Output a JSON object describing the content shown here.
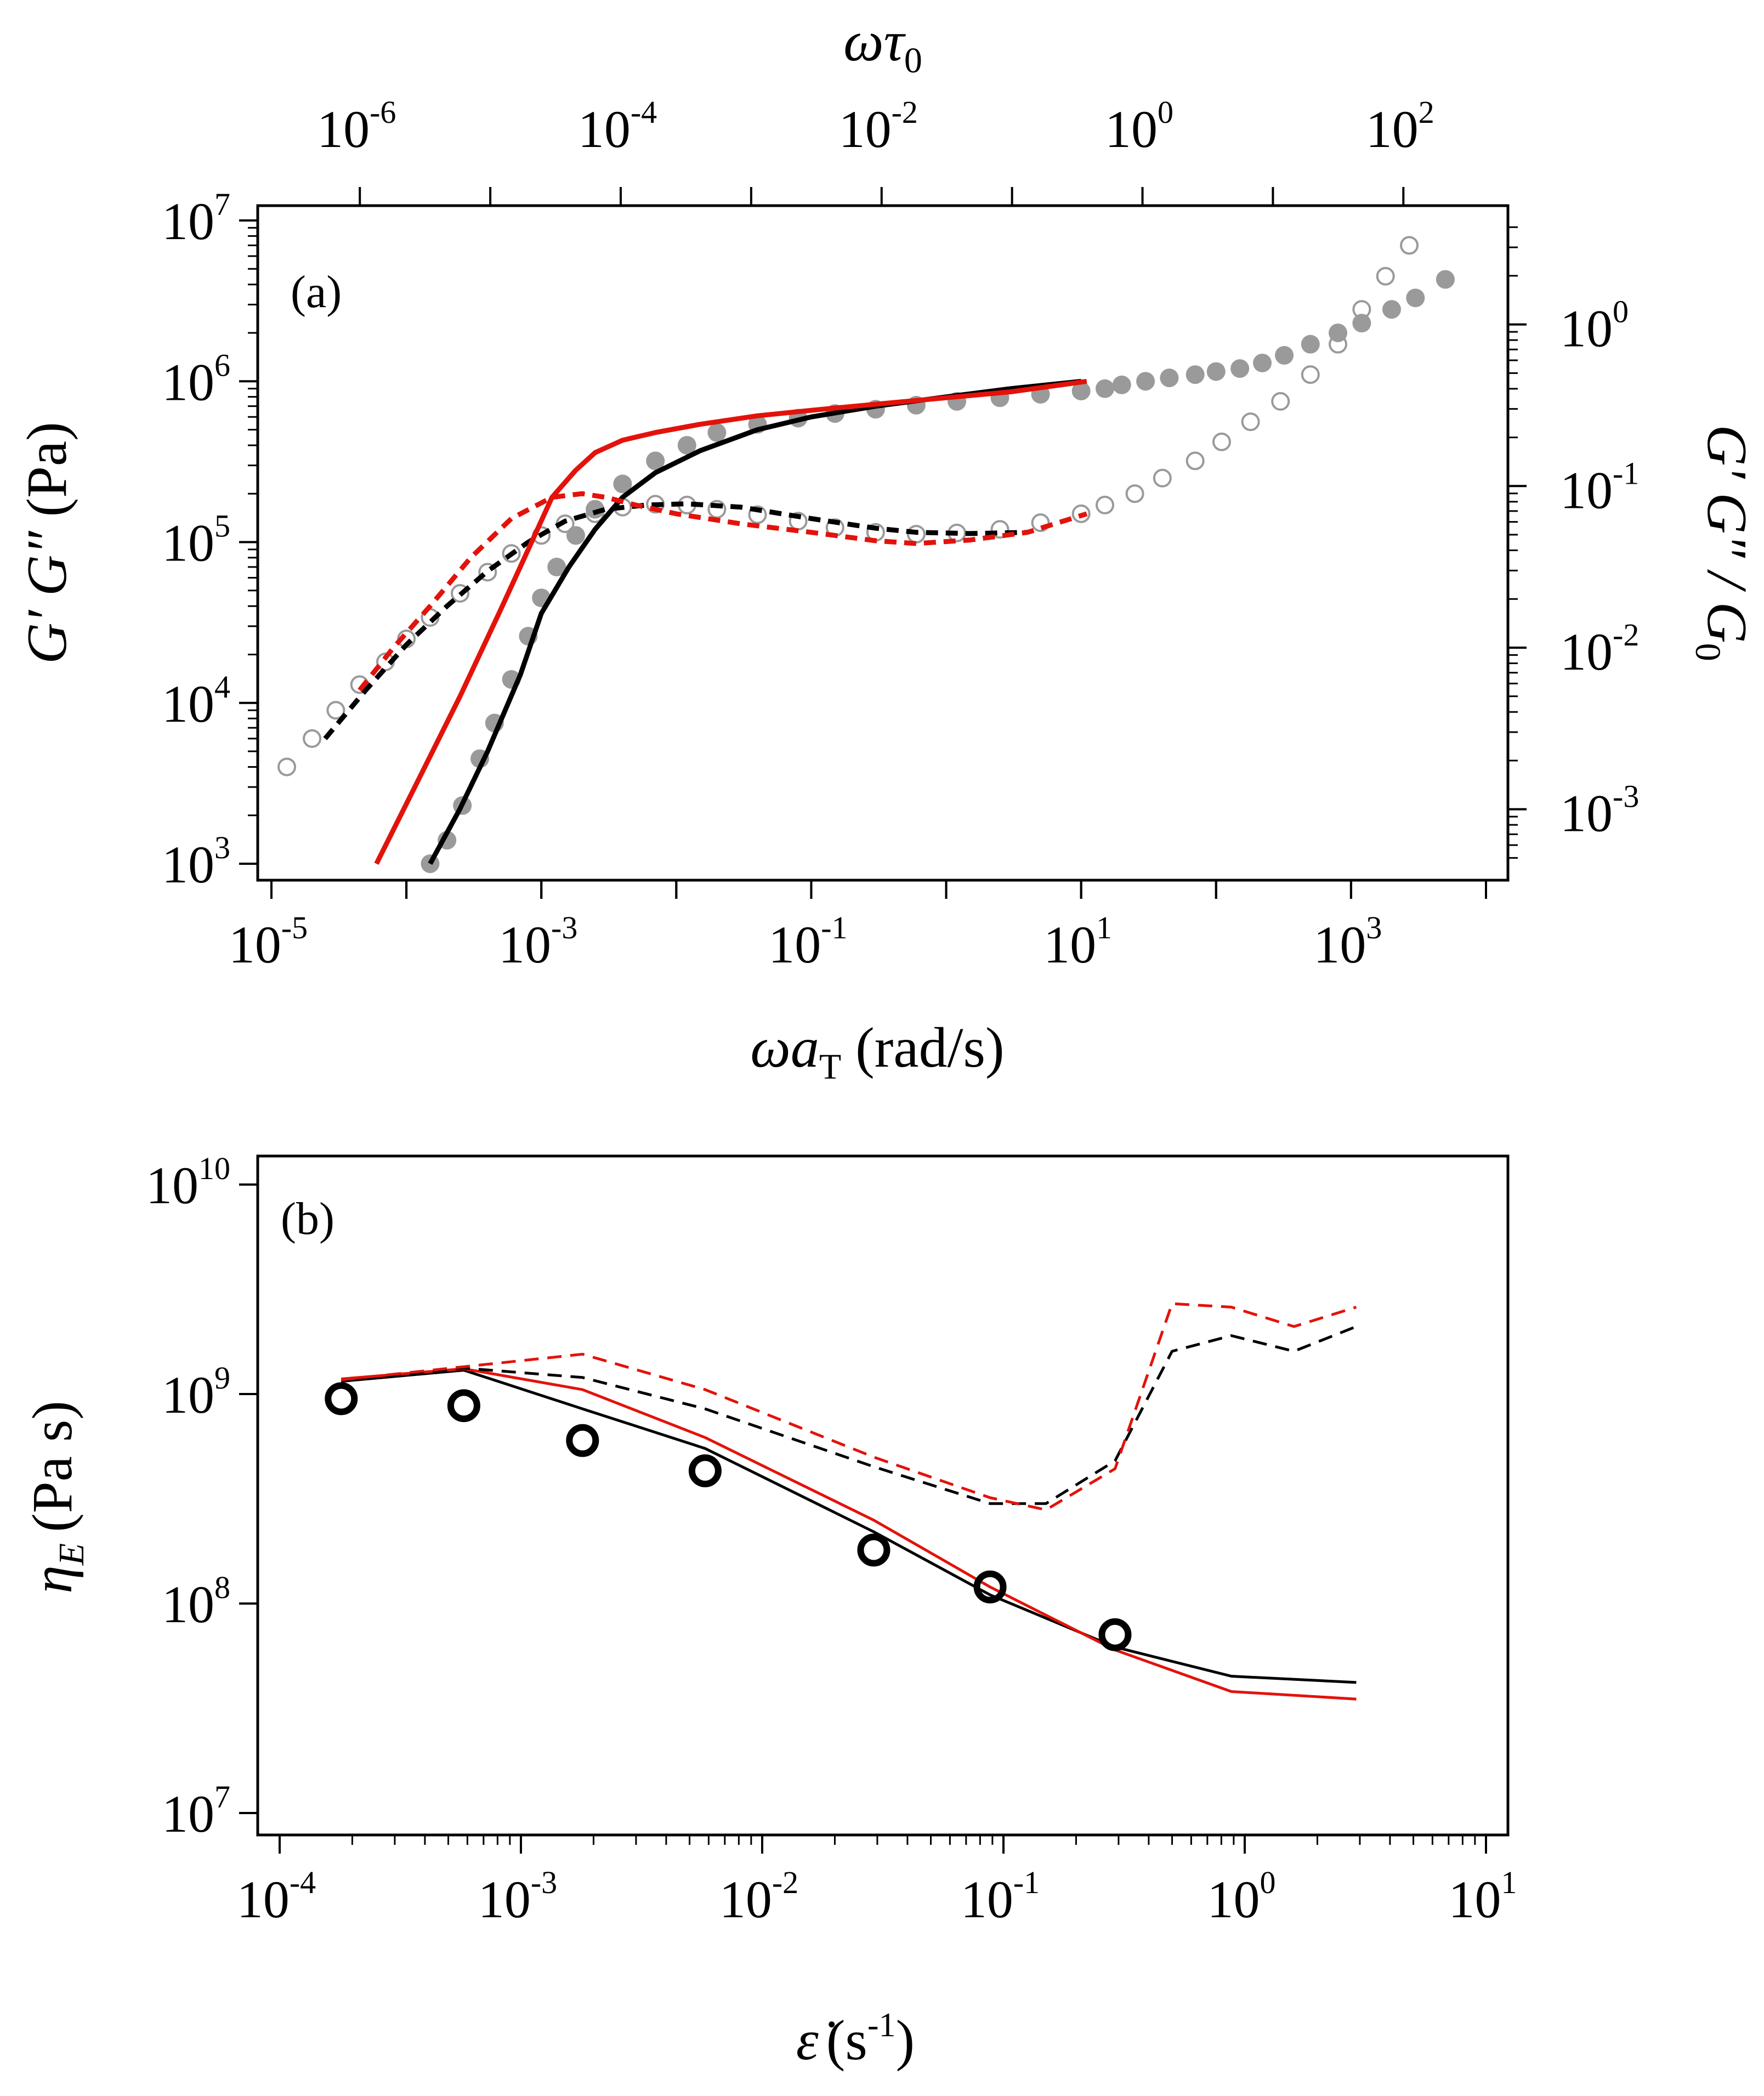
{
  "chart_data": [
    {
      "type": "scatter",
      "panel_label": "(a)",
      "xlabel": "ωa_T (rad/s)",
      "ylabel": "G′ G″ (Pa)",
      "top_xlabel": "ωτ0",
      "right_ylabel": "G′ G″ / G0",
      "x_scale": "log",
      "y_scale": "log",
      "xlim": [
        1e-05,
        10000.0
      ],
      "ylim": [
        1000.0,
        10000000.0
      ],
      "top_xlim": [
        2.1e-07,
        430.0
      ],
      "right_ylim": [
        0.00046,
        4.4
      ],
      "x_ticks": [
        "10^-5",
        "10^-3",
        "10^-1",
        "10^1",
        "10^3"
      ],
      "y_ticks": [
        "10^3",
        "10^4",
        "10^5",
        "10^6",
        "10^7"
      ],
      "top_ticks": [
        "10^-6",
        "10^-4",
        "10^-2",
        "10^0",
        "10^2"
      ],
      "right_ticks": [
        "10^-3",
        "10^-2",
        "10^-1",
        "10^0"
      ],
      "tick_labels": {
        "bottom": [
          {
            "base": "10",
            "exp": "-5"
          },
          {
            "base": "10",
            "exp": "-3"
          },
          {
            "base": "10",
            "exp": "-1"
          },
          {
            "base": "10",
            "exp": "1"
          },
          {
            "base": "10",
            "exp": "3"
          }
        ],
        "left": [
          {
            "base": "10",
            "exp": "3"
          },
          {
            "base": "10",
            "exp": "4"
          },
          {
            "base": "10",
            "exp": "5"
          },
          {
            "base": "10",
            "exp": "6"
          },
          {
            "base": "10",
            "exp": "7"
          }
        ],
        "top": [
          {
            "base": "10",
            "exp": "-6"
          },
          {
            "base": "10",
            "exp": "-4"
          },
          {
            "base": "10",
            "exp": "-2"
          },
          {
            "base": "10",
            "exp": "0"
          },
          {
            "base": "10",
            "exp": "2"
          }
        ],
        "right": [
          {
            "base": "10",
            "exp": "-3"
          },
          {
            "base": "10",
            "exp": "-2"
          },
          {
            "base": "10",
            "exp": "-1"
          },
          {
            "base": "10",
            "exp": "0"
          }
        ]
      },
      "series": [
        {
          "name": "G′ data",
          "marker": "filled-circle",
          "color": "#9a9a9a",
          "x": [
            0.00015,
            0.0002,
            0.00026,
            0.00035,
            0.00045,
            0.0006,
            0.0008,
            0.001,
            0.0013,
            0.0018,
            0.0025,
            0.004,
            0.007,
            0.012,
            0.02,
            0.04,
            0.08,
            0.15,
            0.3,
            0.6,
            1.2,
            2.5,
            5,
            10,
            15,
            20,
            30,
            45,
            70,
            100,
            150,
            220,
            320,
            500,
            800,
            1200,
            2000,
            3000,
            5000
          ],
          "y": [
            1000,
            1400,
            2300,
            4500,
            7500,
            14000,
            26000,
            45000,
            70000,
            110000,
            160000,
            230000,
            320000,
            400000,
            480000,
            540000,
            590000,
            630000,
            670000,
            710000,
            750000,
            790000,
            830000,
            870000,
            900000,
            950000,
            1000000,
            1050000,
            1100000,
            1150000,
            1200000,
            1300000,
            1450000,
            1700000,
            2000000,
            2300000,
            2800000,
            3300000,
            4300000
          ]
        },
        {
          "name": "G″ data",
          "marker": "open-circle",
          "color": "#9a9a9a",
          "x": [
            1.3e-05,
            2e-05,
            3e-05,
            4.5e-05,
            7e-05,
            0.0001,
            0.00015,
            0.00025,
            0.0004,
            0.0006,
            0.001,
            0.0015,
            0.0025,
            0.004,
            0.007,
            0.012,
            0.02,
            0.04,
            0.08,
            0.15,
            0.3,
            0.6,
            1.2,
            2.5,
            5,
            10,
            15,
            25,
            40,
            70,
            110,
            180,
            300,
            500,
            800,
            1200,
            1800,
            2700
          ],
          "y": [
            4000,
            6000,
            9000,
            13000,
            18000,
            25000,
            34000,
            48000,
            65000,
            85000,
            110000,
            130000,
            150000,
            165000,
            172000,
            170000,
            160000,
            148000,
            135000,
            123000,
            115000,
            112000,
            114000,
            120000,
            132000,
            150000,
            170000,
            200000,
            250000,
            320000,
            420000,
            560000,
            750000,
            1100000,
            1700000,
            2800000,
            4500000,
            7000000
          ]
        },
        {
          "name": "G′ model (black)",
          "line": "solid",
          "color": "#000000",
          "x": [
            0.00015,
            0.00025,
            0.0004,
            0.0007,
            0.001,
            0.0016,
            0.0025,
            0.004,
            0.007,
            0.015,
            0.04,
            0.1,
            0.3,
            1,
            3,
            10
          ],
          "y": [
            1000,
            2200,
            5000,
            15000,
            36000,
            70000,
            120000,
            190000,
            270000,
            370000,
            500000,
            600000,
            700000,
            800000,
            900000,
            1000000
          ]
        },
        {
          "name": "G″ model (black)",
          "line": "dashed",
          "color": "#000000",
          "x": [
            2.5e-05,
            5e-05,
            0.0001,
            0.0002,
            0.0004,
            0.0008,
            0.0015,
            0.003,
            0.006,
            0.012,
            0.03,
            0.1,
            0.3,
            0.6,
            1.5,
            4
          ],
          "y": [
            6000,
            12000,
            23000,
            40000,
            66000,
            100000,
            135000,
            160000,
            170000,
            173000,
            165000,
            140000,
            122000,
            115000,
            113000,
            115000
          ]
        },
        {
          "name": "G′ model (red)",
          "line": "solid",
          "color": "#e3120b",
          "x": [
            6e-05,
            0.00012,
            0.00025,
            0.0005,
            0.0008,
            0.0012,
            0.0018,
            0.0025,
            0.004,
            0.007,
            0.015,
            0.04,
            0.1,
            0.3,
            1,
            3,
            11
          ],
          "y": [
            1000,
            3200,
            11000,
            38000,
            90000,
            190000,
            280000,
            360000,
            430000,
            480000,
            540000,
            610000,
            660000,
            720000,
            790000,
            860000,
            1000000
          ]
        },
        {
          "name": "G″ model (red)",
          "line": "dashed",
          "color": "#e3120b",
          "x": [
            4.5e-05,
            8e-05,
            0.00015,
            0.0003,
            0.0006,
            0.0012,
            0.002,
            0.003,
            0.005,
            0.01,
            0.03,
            0.1,
            0.3,
            0.6,
            1.5,
            4,
            11
          ],
          "y": [
            12000,
            22000,
            40000,
            80000,
            140000,
            190000,
            200000,
            190000,
            170000,
            150000,
            130000,
            115000,
            102000,
            98000,
            103000,
            115000,
            150000
          ]
        }
      ]
    },
    {
      "type": "line",
      "panel_label": "(b)",
      "xlabel": "ε̇ (s⁻¹)",
      "xlabel_symbol": "ε̇",
      "xlabel_unit": "(s",
      "xlabel_exp": "-1",
      "xlabel_close": ")",
      "ylabel": "η_E (Pa s)",
      "ylabel_symbol": "η",
      "ylabel_subscript": "E",
      "ylabel_unit": "(Pa s)",
      "x_scale": "log",
      "y_scale": "log",
      "xlim": [
        0.0001,
        10
      ],
      "ylim": [
        10000000.0,
        10000000000.0
      ],
      "x_ticks": [
        "10^-4",
        "10^-3",
        "10^-2",
        "10^-1",
        "10^0",
        "10^1"
      ],
      "y_ticks": [
        "10^7",
        "10^8",
        "10^9",
        "10^10"
      ],
      "tick_labels": {
        "bottom": [
          {
            "base": "10",
            "exp": "-4"
          },
          {
            "base": "10",
            "exp": "-3"
          },
          {
            "base": "10",
            "exp": "-2"
          },
          {
            "base": "10",
            "exp": "-1"
          },
          {
            "base": "10",
            "exp": "0"
          },
          {
            "base": "10",
            "exp": "1"
          }
        ],
        "left": [
          {
            "base": "10",
            "exp": "7"
          },
          {
            "base": "10",
            "exp": "8"
          },
          {
            "base": "10",
            "exp": "9"
          },
          {
            "base": "10",
            "exp": "10"
          }
        ]
      },
      "series": [
        {
          "name": "data",
          "marker": "open-circle",
          "color": "#000000",
          "x": [
            0.00018,
            0.00058,
            0.0018,
            0.0058,
            0.029,
            0.088,
            0.29
          ],
          "y": [
            950000000.0,
            880000000.0,
            600000000.0,
            430000000.0,
            180000000.0,
            120000000.0,
            71000000.0
          ]
        },
        {
          "name": "model black solid",
          "line": "solid",
          "color": "#000000",
          "x": [
            0.00018,
            0.00058,
            0.0018,
            0.0058,
            0.029,
            0.088,
            0.29,
            0.88,
            2.9
          ],
          "y": [
            1150000000.0,
            1300000000.0,
            850000000.0,
            550000000.0,
            220000000.0,
            110000000.0,
            62000000.0,
            45000000.0,
            42000000.0
          ]
        },
        {
          "name": "model red solid",
          "line": "solid",
          "color": "#e3120b",
          "x": [
            0.00018,
            0.00058,
            0.0018,
            0.0058,
            0.029,
            0.088,
            0.29,
            0.88,
            2.9
          ],
          "y": [
            1180000000.0,
            1320000000.0,
            1050000000.0,
            620000000.0,
            250000000.0,
            120000000.0,
            60000000.0,
            38000000.0,
            35000000.0
          ]
        },
        {
          "name": "model black dashed",
          "line": "dashed",
          "color": "#000000",
          "x": [
            0.00018,
            0.00058,
            0.0018,
            0.0058,
            0.029,
            0.088,
            0.15,
            0.29,
            0.5,
            0.88,
            1.6,
            2.9
          ],
          "y": [
            1150000000.0,
            1330000000.0,
            1200000000.0,
            850000000.0,
            450000000.0,
            300000000.0,
            300000000.0,
            480000000.0,
            1600000000.0,
            1900000000.0,
            1600000000.0,
            2100000000.0
          ]
        },
        {
          "name": "model red dashed",
          "line": "dashed",
          "color": "#e3120b",
          "x": [
            0.00018,
            0.00058,
            0.0018,
            0.0058,
            0.029,
            0.088,
            0.15,
            0.29,
            0.5,
            0.88,
            1.6,
            2.9
          ],
          "y": [
            1170000000.0,
            1350000000.0,
            1550000000.0,
            1050000000.0,
            500000000.0,
            320000000.0,
            280000000.0,
            440000000.0,
            2700000000.0,
            2600000000.0,
            2100000000.0,
            2600000000.0
          ]
        }
      ]
    }
  ]
}
